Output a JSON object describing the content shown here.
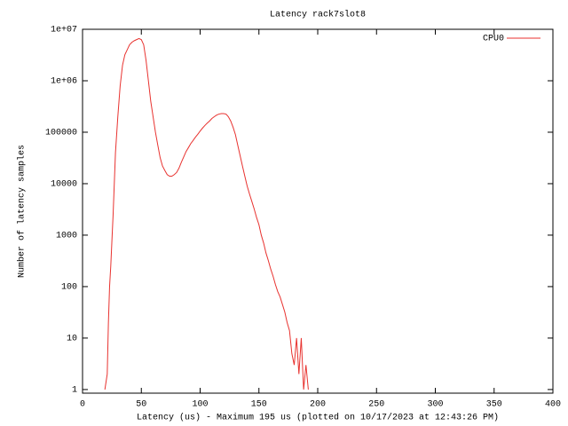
{
  "chart_data": {
    "type": "line",
    "step": true,
    "title": "Latency rack7slot8",
    "x_label": "Latency (us) - Maximum 195 us (plotted on 10/17/2023 at 12:43:26 PM)",
    "y_label": "Number of latency samples",
    "y_log": true,
    "legend": "top-right",
    "xlim": [
      0,
      400
    ],
    "xticks": [
      0,
      50,
      100,
      150,
      200,
      250,
      300,
      350,
      400
    ],
    "ylim": [
      0.85,
      10000000
    ],
    "yticks": [
      1,
      10,
      100,
      1000,
      10000,
      100000,
      {
        "value": 1000000,
        "label": "1e+06"
      },
      {
        "value": 10000000,
        "label": "1e+07"
      }
    ],
    "x": [
      19,
      21,
      22,
      23,
      24,
      25,
      26,
      27,
      28,
      30,
      32,
      34,
      36,
      38,
      40,
      42,
      44,
      46,
      48,
      50,
      52,
      54,
      56,
      58,
      60,
      62,
      64,
      66,
      68,
      70,
      72,
      74,
      76,
      78,
      80,
      82,
      84,
      86,
      88,
      90,
      92,
      94,
      96,
      98,
      100,
      102,
      104,
      106,
      108,
      110,
      112,
      114,
      116,
      118,
      120,
      122,
      124,
      126,
      128,
      130,
      132,
      134,
      136,
      138,
      140,
      142,
      144,
      146,
      148,
      150,
      152,
      154,
      156,
      158,
      160,
      162,
      164,
      166,
      168,
      170,
      172,
      174,
      176,
      178,
      180,
      182,
      184,
      186,
      188,
      190,
      192
    ],
    "series": [
      {
        "name": "CPU0",
        "color": "#e8322f",
        "values": [
          1,
          2,
          20,
          100,
          250,
          800,
          2500,
          10000,
          40000,
          200000,
          800000,
          2000000,
          3200000,
          4000000,
          5000000,
          5600000,
          6000000,
          6300000,
          6600000,
          6300000,
          5000000,
          2500000,
          1000000,
          400000,
          200000,
          100000,
          56000,
          32000,
          22000,
          18000,
          15000,
          14000,
          14000,
          15000,
          16500,
          20000,
          26000,
          33000,
          42000,
          50000,
          60000,
          69000,
          80000,
          91000,
          105000,
          120000,
          135000,
          150000,
          165000,
          185000,
          200000,
          215000,
          225000,
          230000,
          230000,
          225000,
          200000,
          165000,
          125000,
          90000,
          56000,
          35000,
          22000,
          14000,
          9000,
          6300,
          4500,
          3200,
          2200,
          1600,
          1000,
          700,
          450,
          320,
          220,
          160,
          110,
          80,
          63,
          45,
          32,
          20,
          14,
          5,
          3,
          10,
          2,
          10,
          1,
          3,
          1
        ]
      }
    ]
  }
}
